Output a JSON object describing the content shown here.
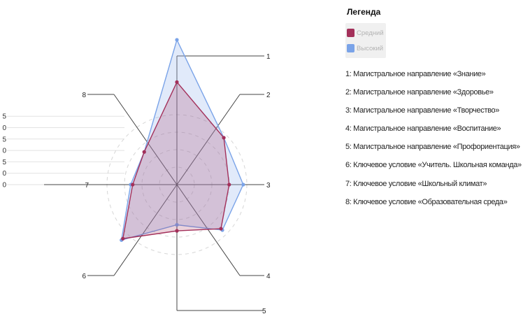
{
  "legend": {
    "title": "Легенда",
    "series": [
      {
        "name": "Средний",
        "color": "#a3305a"
      },
      {
        "name": "Высокий",
        "color": "#7aa3e8"
      }
    ]
  },
  "axis_descriptions": [
    "1: Магистральное направление «Знание»",
    "2: Магистральное направление «Здоровье»",
    "3: Магистральное направление «Творчество»",
    "4: Магистральное направление «Воспитание»",
    "5: Магистральное направление «Профориентация»",
    "6: Ключевое условие «Учитель. Школьная команда»",
    "7: Ключевое условие «Школьный климат»",
    "8: Ключевое условие «Образовательная среда»"
  ],
  "colors": {
    "medium_line": "#a3305a",
    "medium_fill": "#a3305a",
    "high_line": "#7aa3e8",
    "high_fill": "#9bb8ee",
    "axis_line": "#444444",
    "grid_ring": "#d6d6d6"
  },
  "chart_data": {
    "type": "radar",
    "axes": [
      "1",
      "2",
      "3",
      "4",
      "5",
      "6",
      "7",
      "8"
    ],
    "scale_ticks": [
      "5",
      "0",
      "5",
      "0",
      "5",
      "0",
      "0"
    ],
    "r_max": 8,
    "series": [
      {
        "name": "Средний",
        "values": [
          5.1,
          3.3,
          2.6,
          3.1,
          2.3,
          3.8,
          2.2,
          2.3
        ]
      },
      {
        "name": "Высокий",
        "values": [
          7.2,
          3.3,
          3.3,
          3.2,
          2.0,
          3.9,
          2.3,
          2.3
        ]
      }
    ],
    "grid": true
  }
}
